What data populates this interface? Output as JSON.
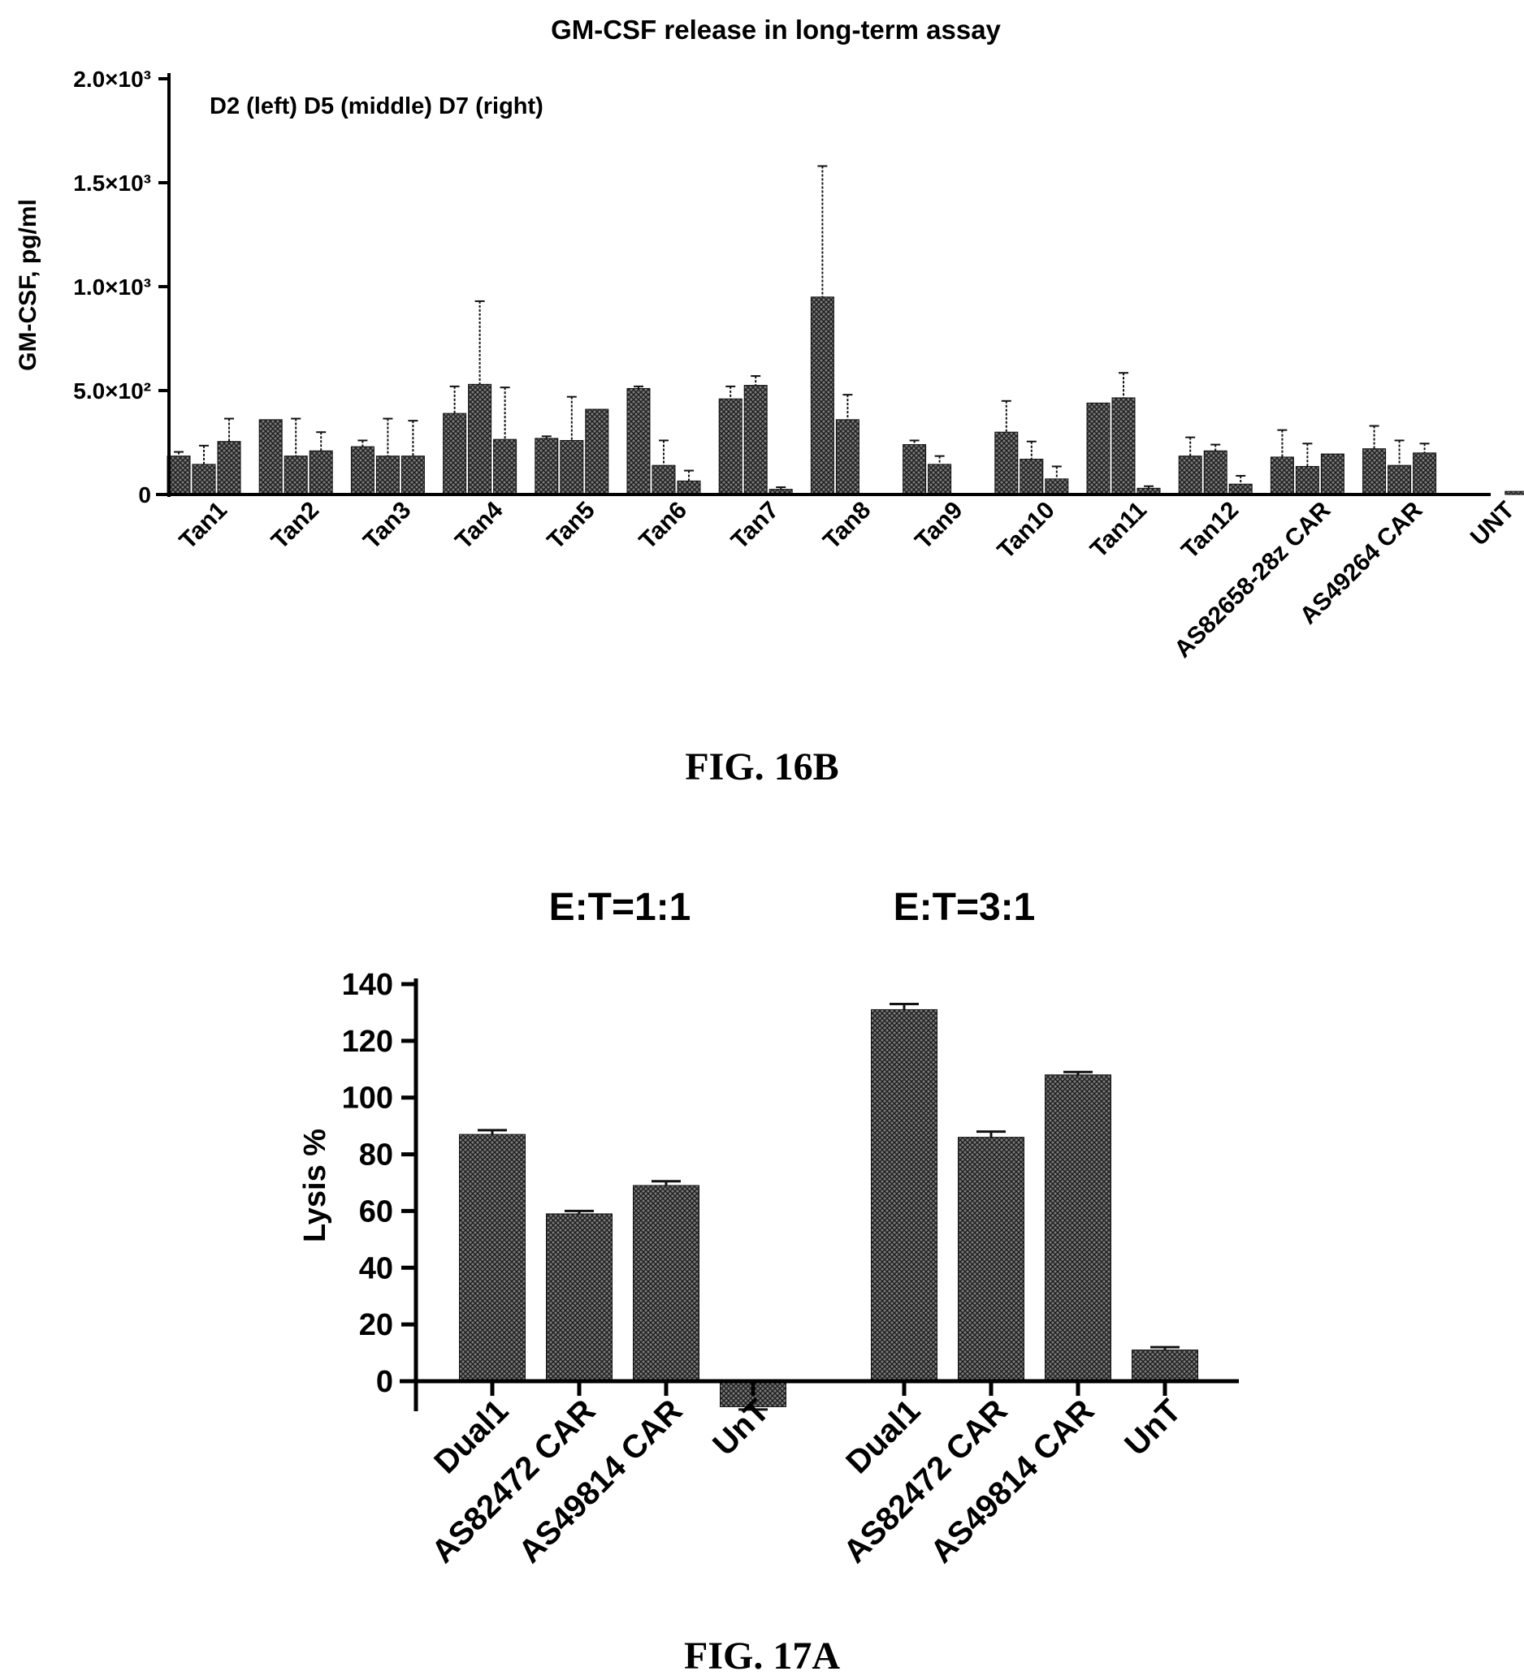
{
  "figures": [
    {
      "caption": "FIG. 16B",
      "chart_data": {
        "type": "bar",
        "title": "GM-CSF release in long-term assay",
        "annotation": "D2 (left) D5 (middle) D7 (right)",
        "ylabel": "GM-CSF, pg/ml",
        "xlabel": "",
        "ylim": [
          0,
          2000
        ],
        "yticks": [
          0,
          500,
          1000,
          1500,
          2000
        ],
        "ytick_labels": [
          "0",
          "5.0×10²",
          "1.0×10³",
          "1.5×10³",
          "2.0×10³"
        ],
        "categories": [
          "Tan1",
          "Tan2",
          "Tan3",
          "Tan4",
          "Tan5",
          "Tan6",
          "Tan7",
          "Tan8",
          "Tan9",
          "Tan10",
          "Tan11",
          "Tan12",
          "AS82658-28z CAR",
          "AS49264 CAR",
          "UNT"
        ],
        "series": [
          {
            "values": [
              185,
              360,
              230,
              390,
              270,
              510,
              460,
              950,
              240,
              300,
              440,
              185,
              180,
              220,
              0
            ],
            "errors": [
              20,
              0,
              30,
              130,
              10,
              10,
              60,
              630,
              20,
              150,
              0,
              90,
              130,
              110,
              0
            ]
          },
          {
            "values": [
              145,
              185,
              185,
              530,
              260,
              140,
              525,
              360,
              145,
              170,
              465,
              210,
              135,
              140,
              0
            ],
            "errors": [
              90,
              180,
              180,
              400,
              210,
              120,
              45,
              120,
              40,
              85,
              120,
              30,
              110,
              120,
              0
            ]
          },
          {
            "values": [
              255,
              210,
              185,
              265,
              410,
              65,
              25,
              0,
              0,
              75,
              30,
              50,
              195,
              200,
              15
            ],
            "errors": [
              110,
              90,
              170,
              250,
              0,
              50,
              10,
              0,
              0,
              60,
              10,
              40,
              0,
              45,
              0
            ]
          }
        ],
        "grid": false,
        "legend": "none"
      }
    },
    {
      "caption": "FIG. 17A",
      "chart_data": {
        "type": "bar",
        "group_titles": [
          "E:T=1:1",
          "E:T=3:1"
        ],
        "ylabel": "Lysis %",
        "xlabel": "",
        "ylim": [
          -10,
          140
        ],
        "yticks": [
          0,
          20,
          40,
          60,
          80,
          100,
          120,
          140
        ],
        "groups": [
          {
            "categories": [
              "Dual1",
              "AS82472 CAR",
              "AS49814 CAR",
              "UnT"
            ],
            "values": [
              87,
              59,
              69,
              -9
            ],
            "errors": [
              1.5,
              1,
              1.5,
              1
            ]
          },
          {
            "categories": [
              "Dual1",
              "AS82472 CAR",
              "AS49814 CAR",
              "UnT"
            ],
            "values": [
              131,
              86,
              108,
              11
            ],
            "errors": [
              2,
              2,
              1,
              1
            ]
          }
        ],
        "grid": false,
        "legend": "none"
      }
    }
  ]
}
